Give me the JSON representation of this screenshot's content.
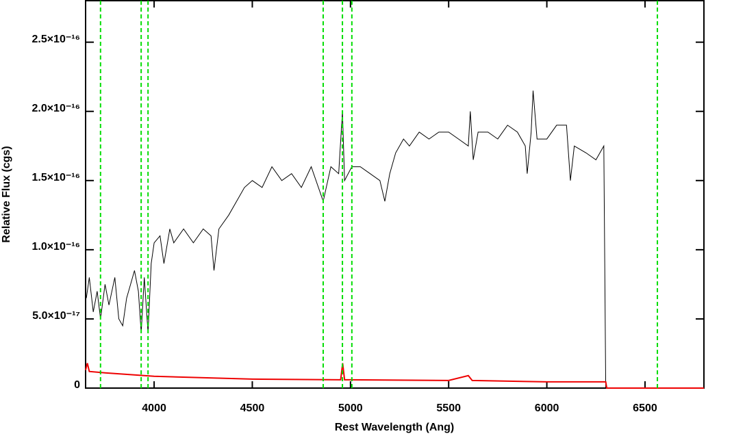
{
  "chart_data": {
    "type": "line",
    "x_label": "Rest Wavelength (Ang)",
    "y_label": "Relative Flux (cgs)",
    "xlim": [
      3651,
      6800
    ],
    "ylim": [
      0,
      2.8e-16
    ],
    "xticks": [
      4000,
      4500,
      5000,
      5500,
      6000,
      6500
    ],
    "yticks": [
      0,
      {
        "value": 5e-17,
        "label": "5.0×10⁻¹⁷"
      },
      {
        "value": 1e-16,
        "label": "1.0×10⁻¹⁶"
      },
      {
        "value": 1.5e-16,
        "label": "1.5×10⁻¹⁶"
      },
      {
        "value": 2e-16,
        "label": "2.0×10⁻¹⁶"
      },
      {
        "value": 2.5e-16,
        "label": "2.5×10⁻¹⁶"
      }
    ],
    "vlines": [
      3727,
      3934,
      3969,
      4861,
      4959,
      5007,
      6563
    ],
    "vline_color": "#00dd00",
    "series": [
      {
        "color": "#000000",
        "x": [
          3655,
          3670,
          3690,
          3710,
          3727,
          3750,
          3770,
          3800,
          3820,
          3840,
          3860,
          3880,
          3900,
          3920,
          3934,
          3950,
          3969,
          3985,
          4000,
          4030,
          4050,
          4080,
          4100,
          4150,
          4200,
          4250,
          4290,
          4305,
          4330,
          4380,
          4420,
          4460,
          4500,
          4550,
          4600,
          4650,
          4700,
          4750,
          4800,
          4861,
          4900,
          4940,
          4959,
          4970,
          5007,
          5050,
          5100,
          5150,
          5175,
          5200,
          5230,
          5270,
          5300,
          5350,
          5400,
          5450,
          5500,
          5550,
          5600,
          5610,
          5625,
          5650,
          5700,
          5750,
          5800,
          5850,
          5890,
          5900,
          5920,
          5930,
          5950,
          6000,
          6050,
          6100,
          6120,
          6140,
          6200,
          6250,
          6290,
          6300,
          6800
        ],
        "values": [
          6.5e-17,
          8e-17,
          5.5e-17,
          7e-17,
          5e-17,
          7.5e-17,
          6e-17,
          8e-17,
          5e-17,
          4.5e-17,
          6.5e-17,
          7.5e-17,
          8.5e-17,
          7e-17,
          4e-17,
          8e-17,
          4e-17,
          9e-17,
          1.05e-16,
          1.1e-16,
          9e-17,
          1.15e-16,
          1.05e-16,
          1.15e-16,
          1.05e-16,
          1.15e-16,
          1.1e-16,
          8.5e-17,
          1.15e-16,
          1.25e-16,
          1.35e-16,
          1.45e-16,
          1.5e-16,
          1.45e-16,
          1.6e-16,
          1.5e-16,
          1.55e-16,
          1.45e-16,
          1.6e-16,
          1.35e-16,
          1.6e-16,
          1.55e-16,
          2e-16,
          1.5e-16,
          1.6e-16,
          1.6e-16,
          1.55e-16,
          1.5e-16,
          1.35e-16,
          1.55e-16,
          1.7e-16,
          1.8e-16,
          1.75e-16,
          1.85e-16,
          1.8e-16,
          1.85e-16,
          1.85e-16,
          1.8e-16,
          1.75e-16,
          2e-16,
          1.65e-16,
          1.85e-16,
          1.85e-16,
          1.8e-16,
          1.9e-16,
          1.85e-16,
          1.75e-16,
          1.55e-16,
          1.85e-16,
          2.15e-16,
          1.8e-16,
          1.8e-16,
          1.9e-16,
          1.9e-16,
          1.5e-16,
          1.75e-16,
          1.7e-16,
          1.65e-16,
          1.75e-16,
          0,
          0
        ]
      },
      {
        "color": "#ee0000",
        "x": [
          3651,
          3660,
          3670,
          3750,
          4000,
          4500,
          4950,
          4960,
          4970,
          5000,
          5500,
          5600,
          5620,
          6000,
          6300,
          6305,
          6800
        ],
        "values": [
          1.3e-17,
          1.8e-17,
          1.2e-17,
          1.1e-17,
          8.5e-18,
          6.5e-18,
          6e-18,
          1.8e-17,
          6e-18,
          6e-18,
          5.5e-18,
          9e-18,
          5.5e-18,
          4.5e-18,
          4.5e-18,
          0,
          0
        ]
      }
    ]
  }
}
